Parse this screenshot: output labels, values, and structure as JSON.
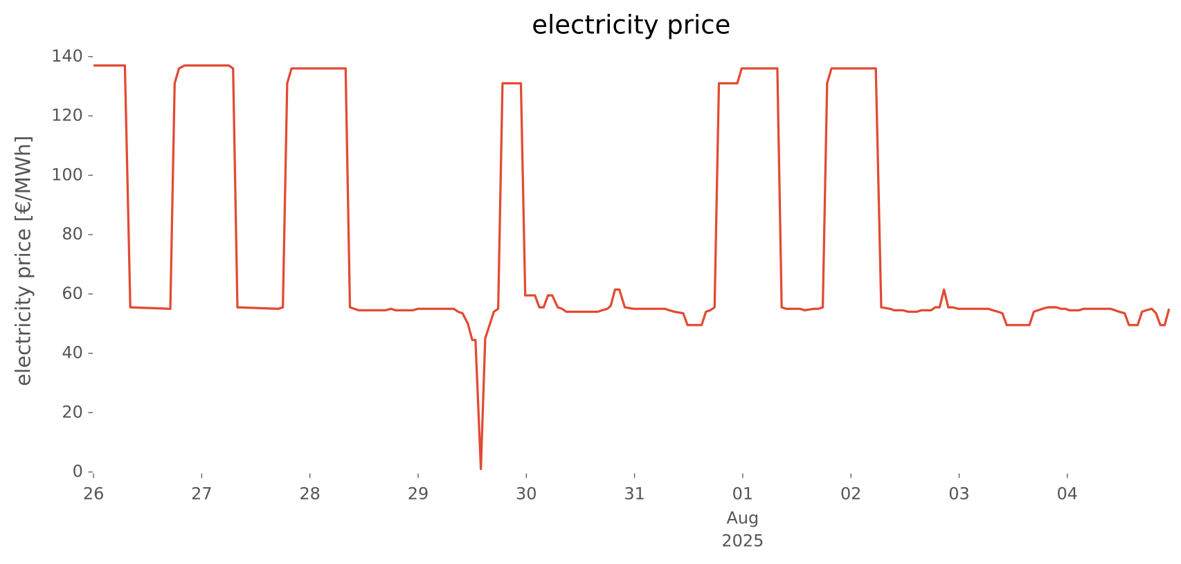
{
  "chart_data": {
    "type": "line",
    "title": "electricity price",
    "ylabel": "electricity price [€/MWh]",
    "x": [
      0,
      0.29,
      0.34,
      0.71,
      0.75,
      0.79,
      0.84,
      1.25,
      1.29,
      1.33,
      1.71,
      1.75,
      1.79,
      1.83,
      2.33,
      2.37,
      2.45,
      2.7,
      2.75,
      2.79,
      2.95,
      3.0,
      3.33,
      3.37,
      3.41,
      3.46,
      3.5,
      3.53,
      3.58,
      3.62,
      3.7,
      3.74,
      3.78,
      3.95,
      3.99,
      4.08,
      4.12,
      4.16,
      4.2,
      4.24,
      4.29,
      4.33,
      4.37,
      4.66,
      4.7,
      4.75,
      4.78,
      4.82,
      4.86,
      4.91,
      4.99,
      5.28,
      5.32,
      5.37,
      5.45,
      5.49,
      5.62,
      5.66,
      5.7,
      5.74,
      5.78,
      5.95,
      5.99,
      6.32,
      6.36,
      6.4,
      6.53,
      6.57,
      6.66,
      6.7,
      6.74,
      6.78,
      6.82,
      7.23,
      7.28,
      7.36,
      7.4,
      7.48,
      7.53,
      7.61,
      7.65,
      7.74,
      7.78,
      7.82,
      7.86,
      7.9,
      7.94,
      7.99,
      8.27,
      8.31,
      8.36,
      8.4,
      8.44,
      8.65,
      8.69,
      8.73,
      8.77,
      8.82,
      8.9,
      8.94,
      8.98,
      9.02,
      9.11,
      9.15,
      9.4,
      9.44,
      9.48,
      9.53,
      9.57,
      9.65,
      9.69,
      9.73,
      9.78,
      9.82,
      9.86,
      9.9,
      9.94
    ],
    "series": [
      {
        "name": "electricity price",
        "color": "#e24a33",
        "values": [
          137,
          137,
          55.5,
          55,
          131,
          136,
          137,
          137,
          136,
          55.5,
          55,
          55.5,
          131,
          136,
          136,
          55.5,
          54.5,
          54.5,
          55,
          54.5,
          54.5,
          55,
          55,
          54,
          53.5,
          50,
          44.5,
          44.5,
          1,
          45,
          54,
          55,
          131,
          131,
          59.5,
          59.5,
          55.5,
          55.5,
          59.5,
          59.5,
          55.5,
          55,
          54,
          54,
          54.5,
          55,
          56,
          61.5,
          61.5,
          55.5,
          55,
          55,
          54.5,
          54,
          53.5,
          49.5,
          49.5,
          54,
          54.5,
          55.5,
          131,
          131,
          136,
          136,
          55.5,
          55,
          55,
          54.5,
          55,
          55,
          55.5,
          131,
          136,
          136,
          55.5,
          55,
          54.5,
          54.5,
          54,
          54,
          54.5,
          54.5,
          55.5,
          55.5,
          61.5,
          55.5,
          55.5,
          55,
          55,
          54.5,
          54,
          53.5,
          49.5,
          49.5,
          54,
          54.5,
          55,
          55.5,
          55.5,
          55,
          55,
          54.5,
          54.5,
          55,
          55,
          54.5,
          54,
          53.5,
          49.5,
          49.5,
          54,
          54.5,
          55,
          53.5,
          49.5,
          49.5,
          55
        ]
      }
    ],
    "xlim": [
      0,
      9.96
    ],
    "xticks": [
      {
        "value": 0,
        "label": "26"
      },
      {
        "value": 1,
        "label": "27"
      },
      {
        "value": 2,
        "label": "28"
      },
      {
        "value": 3,
        "label": "29"
      },
      {
        "value": 4,
        "label": "30"
      },
      {
        "value": 5,
        "label": "31"
      },
      {
        "value": 6,
        "label": "01"
      },
      {
        "value": 7,
        "label": "02"
      },
      {
        "value": 8,
        "label": "03"
      },
      {
        "value": 9,
        "label": "04"
      }
    ],
    "x_sublabels": [
      "Aug",
      "2025"
    ],
    "ylim": [
      0,
      140
    ],
    "yticks": [
      0,
      20,
      40,
      60,
      80,
      100,
      120,
      140
    ],
    "grid": false
  }
}
